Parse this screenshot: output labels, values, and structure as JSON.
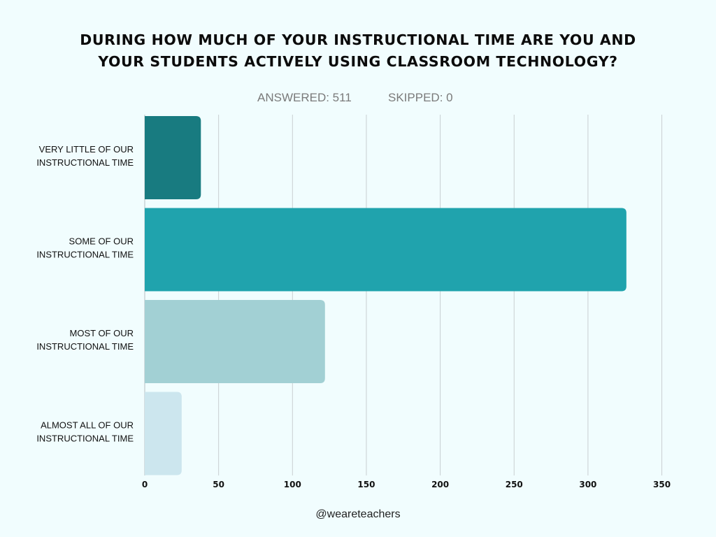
{
  "title": {
    "line1": "DURING HOW MUCH OF YOUR INSTRUCTIONAL TIME ARE YOU AND",
    "line2": "YOUR STUDENTS ACTIVELY USING CLASSROOM TECHNOLOGY?"
  },
  "stats": {
    "answered": "ANSWERED: 511",
    "skipped": "SKIPPED: 0"
  },
  "footer": "@weareteachers",
  "chart_data": {
    "type": "bar",
    "orientation": "horizontal",
    "categories": [
      [
        "VERY LITTLE OF OUR",
        "INSTRUCTIONAL TIME"
      ],
      [
        "SOME OF OUR",
        "INSTRUCTIONAL TIME"
      ],
      [
        "MOST OF OUR",
        "INSTRUCTIONAL TIME"
      ],
      [
        "ALMOST ALL OF OUR",
        "INSTRUCTIONAL TIME"
      ]
    ],
    "values": [
      38,
      326,
      122,
      25
    ],
    "colors": [
      "#187b80",
      "#20a3ad",
      "#a2d0d4",
      "#cce6ee"
    ],
    "xlim": [
      0,
      350
    ],
    "xticks": [
      0,
      50,
      100,
      150,
      200,
      250,
      300,
      350
    ],
    "grid": true
  }
}
